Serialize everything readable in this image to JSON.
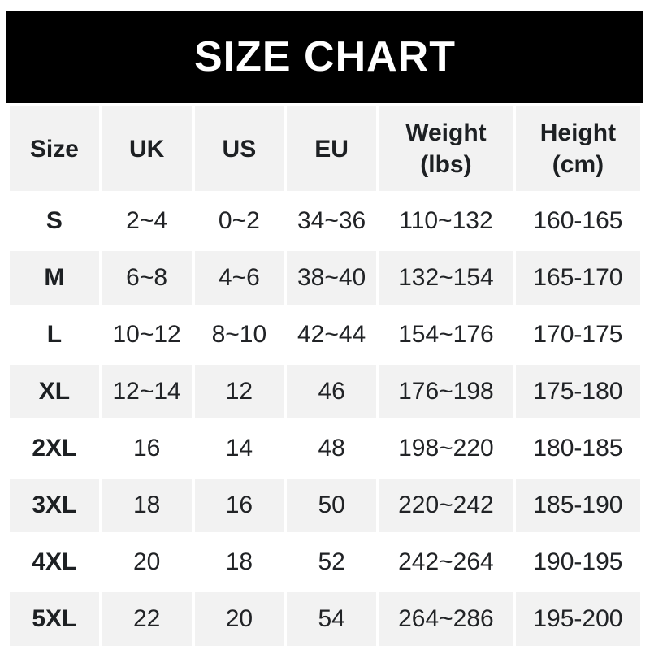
{
  "banner": {
    "title": "SIZE CHART"
  },
  "colors": {
    "banner_bg": "#000000",
    "banner_text": "#ffffff",
    "stripe_bg": "#f2f2f2",
    "text": "#212326"
  },
  "chart_data": {
    "type": "table",
    "title": "SIZE CHART",
    "layout": {
      "stripes": "header and even data rows shaded, odd data rows white",
      "grid": "4px white gaps between cells"
    },
    "columns": [
      {
        "line1": "Size",
        "line2": ""
      },
      {
        "line1": "UK",
        "line2": ""
      },
      {
        "line1": "US",
        "line2": ""
      },
      {
        "line1": "EU",
        "line2": ""
      },
      {
        "line1": "Weight",
        "line2": "(lbs)"
      },
      {
        "line1": "Height",
        "line2": "(cm)"
      }
    ],
    "rows": [
      {
        "size": "S",
        "uk": "2~4",
        "us": "0~2",
        "eu": "34~36",
        "weight": "110~132",
        "height": "160-165"
      },
      {
        "size": "M",
        "uk": "6~8",
        "us": "4~6",
        "eu": "38~40",
        "weight": "132~154",
        "height": "165-170"
      },
      {
        "size": "L",
        "uk": "10~12",
        "us": "8~10",
        "eu": "42~44",
        "weight": "154~176",
        "height": "170-175"
      },
      {
        "size": "XL",
        "uk": "12~14",
        "us": "12",
        "eu": "46",
        "weight": "176~198",
        "height": "175-180"
      },
      {
        "size": "2XL",
        "uk": "16",
        "us": "14",
        "eu": "48",
        "weight": "198~220",
        "height": "180-185"
      },
      {
        "size": "3XL",
        "uk": "18",
        "us": "16",
        "eu": "50",
        "weight": "220~242",
        "height": "185-190"
      },
      {
        "size": "4XL",
        "uk": "20",
        "us": "18",
        "eu": "52",
        "weight": "242~264",
        "height": "190-195"
      },
      {
        "size": "5XL",
        "uk": "22",
        "us": "20",
        "eu": "54",
        "weight": "264~286",
        "height": "195-200"
      }
    ]
  }
}
